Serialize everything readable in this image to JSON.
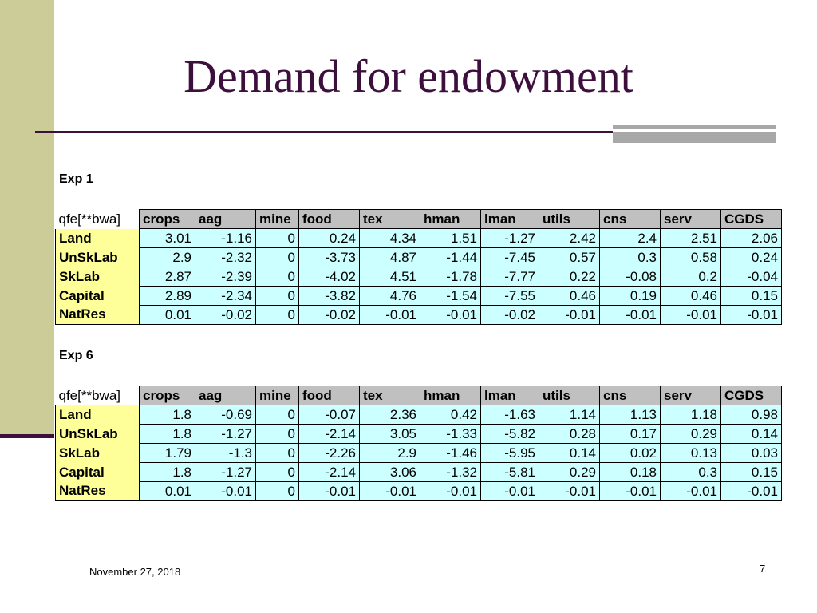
{
  "slide": {
    "title": "Demand for endowment",
    "date": "November 27, 2018",
    "page_number": "7"
  },
  "colors": {
    "title": "#3d0f3d",
    "left_bar": "#cccc99",
    "header_fill": "#c0c0c0",
    "row_label_fill": "#ffff99",
    "value_fill": "#ccffff"
  },
  "tables": [
    {
      "label": "Exp 1",
      "corner": "qfe[**bwa]",
      "columns": [
        "crops",
        "aag",
        "mine",
        "food",
        "tex",
        "hman",
        "lman",
        "utils",
        "cns",
        "serv",
        "CGDS"
      ],
      "rows": [
        {
          "name": "Land",
          "values": [
            "3.01",
            "-1.16",
            "0",
            "0.24",
            "4.34",
            "1.51",
            "-1.27",
            "2.42",
            "2.4",
            "2.51",
            "2.06"
          ]
        },
        {
          "name": "UnSkLab",
          "values": [
            "2.9",
            "-2.32",
            "0",
            "-3.73",
            "4.87",
            "-1.44",
            "-7.45",
            "0.57",
            "0.3",
            "0.58",
            "0.24"
          ]
        },
        {
          "name": "SkLab",
          "values": [
            "2.87",
            "-2.39",
            "0",
            "-4.02",
            "4.51",
            "-1.78",
            "-7.77",
            "0.22",
            "-0.08",
            "0.2",
            "-0.04"
          ]
        },
        {
          "name": "Capital",
          "values": [
            "2.89",
            "-2.34",
            "0",
            "-3.82",
            "4.76",
            "-1.54",
            "-7.55",
            "0.46",
            "0.19",
            "0.46",
            "0.15"
          ]
        },
        {
          "name": "NatRes",
          "values": [
            "0.01",
            "-0.02",
            "0",
            "-0.02",
            "-0.01",
            "-0.01",
            "-0.02",
            "-0.01",
            "-0.01",
            "-0.01",
            "-0.01"
          ]
        }
      ]
    },
    {
      "label": "Exp 6",
      "corner": "qfe[**bwa]",
      "columns": [
        "crops",
        "aag",
        "mine",
        "food",
        "tex",
        "hman",
        "lman",
        "utils",
        "cns",
        "serv",
        "CGDS"
      ],
      "rows": [
        {
          "name": "Land",
          "values": [
            "1.8",
            "-0.69",
            "0",
            "-0.07",
            "2.36",
            "0.42",
            "-1.63",
            "1.14",
            "1.13",
            "1.18",
            "0.98"
          ]
        },
        {
          "name": "UnSkLab",
          "values": [
            "1.8",
            "-1.27",
            "0",
            "-2.14",
            "3.05",
            "-1.33",
            "-5.82",
            "0.28",
            "0.17",
            "0.29",
            "0.14"
          ]
        },
        {
          "name": "SkLab",
          "values": [
            "1.79",
            "-1.3",
            "0",
            "-2.26",
            "2.9",
            "-1.46",
            "-5.95",
            "0.14",
            "0.02",
            "0.13",
            "0.03"
          ]
        },
        {
          "name": "Capital",
          "values": [
            "1.8",
            "-1.27",
            "0",
            "-2.14",
            "3.06",
            "-1.32",
            "-5.81",
            "0.29",
            "0.18",
            "0.3",
            "0.15"
          ]
        },
        {
          "name": "NatRes",
          "values": [
            "0.01",
            "-0.01",
            "0",
            "-0.01",
            "-0.01",
            "-0.01",
            "-0.01",
            "-0.01",
            "-0.01",
            "-0.01",
            "-0.01"
          ]
        }
      ]
    }
  ]
}
